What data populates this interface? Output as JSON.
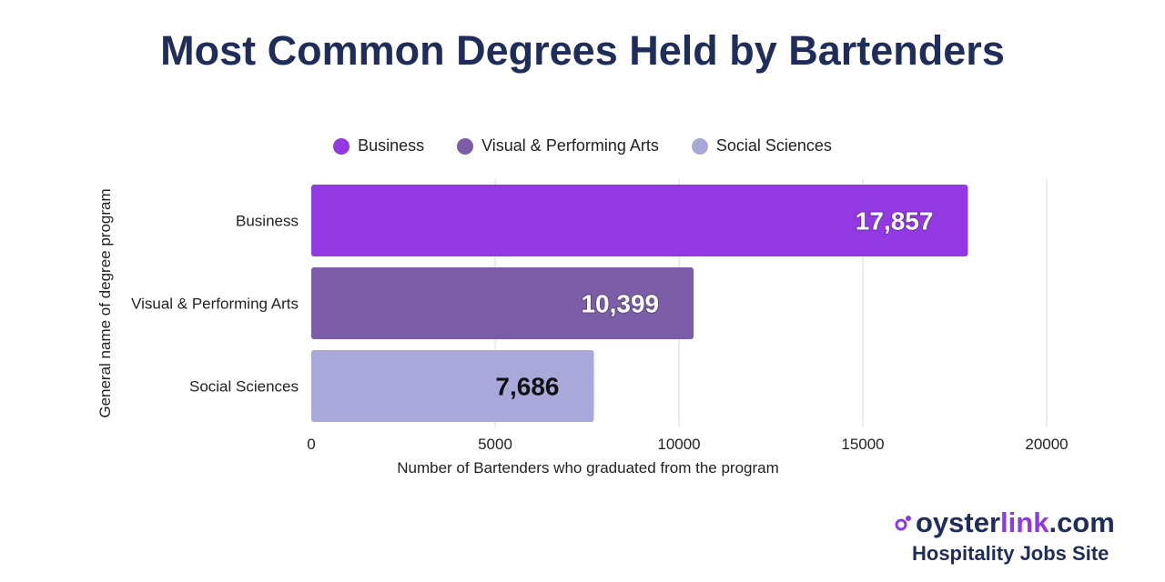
{
  "title": "Most Common Degrees Held by Bartenders",
  "logo": {
    "brand_first": "oyster",
    "brand_accent": "link",
    "brand_tld": ".com",
    "tagline": "Hospitality Jobs Site"
  },
  "colors": {
    "business": "#9339e3",
    "arts": "#7b5ea7",
    "social": "#a9a8da",
    "title": "#1f2d5a",
    "grid": "#d9d9d9"
  },
  "chart_data": {
    "type": "bar",
    "orientation": "horizontal",
    "title": "Most Common Degrees Held by Bartenders",
    "xlabel": "Number of Bartenders who graduated from the program",
    "ylabel": "General name of degree program",
    "xlim": [
      0,
      20000
    ],
    "xticks": [
      0,
      5000,
      10000,
      15000,
      20000
    ],
    "grid": true,
    "legend_position": "top",
    "categories": [
      "Business",
      "Visual & Performing Arts",
      "Social Sciences"
    ],
    "values": [
      17857,
      10399,
      7686
    ],
    "value_labels": [
      "17,857",
      "10,399",
      "7,686"
    ],
    "series": [
      {
        "name": "Business",
        "values": [
          17857,
          null,
          null
        ],
        "color": "#9339e3"
      },
      {
        "name": "Visual & Performing Arts",
        "values": [
          null,
          10399,
          null
        ],
        "color": "#7b5ea7"
      },
      {
        "name": "Social Sciences",
        "values": [
          null,
          null,
          7686
        ],
        "color": "#a9a8da"
      }
    ]
  }
}
